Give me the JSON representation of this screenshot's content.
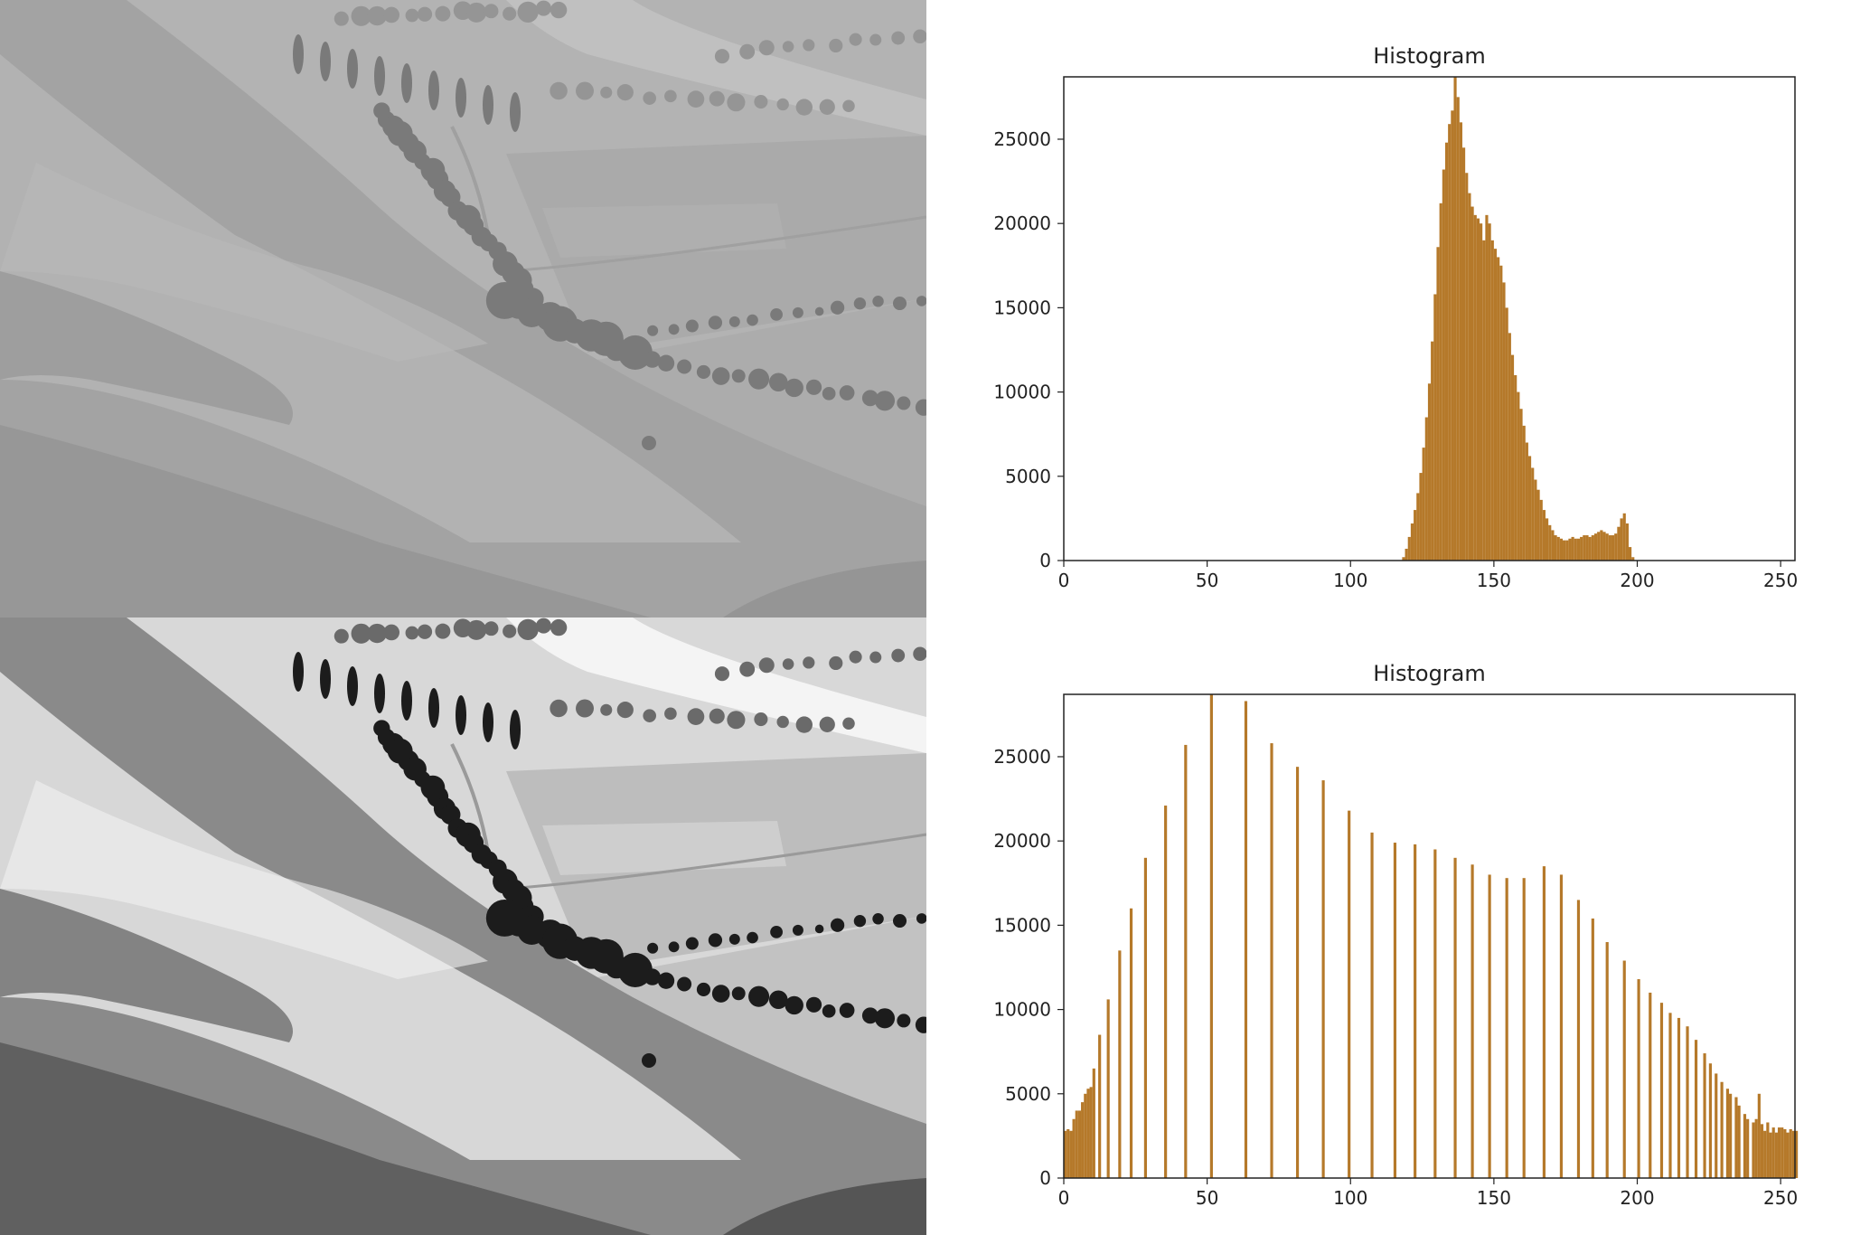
{
  "images": [
    {
      "name": "low-contrast-grayscale-landscape",
      "tone": "low-contrast"
    },
    {
      "name": "histogram-equalized-grayscale-landscape",
      "tone": "high-contrast"
    }
  ],
  "colors": {
    "bar": "#b5792a",
    "axis": "#222222",
    "background": "#ffffff"
  },
  "chart_data": [
    {
      "type": "bar",
      "title": "Histogram",
      "xlabel": "",
      "ylabel": "",
      "xlim": [
        0,
        255
      ],
      "ylim": [
        0,
        28700
      ],
      "xticks": [
        0,
        50,
        100,
        150,
        200,
        250
      ],
      "yticks": [
        0,
        5000,
        10000,
        15000,
        20000,
        25000
      ],
      "grid": false,
      "bar_width": 1,
      "x": [
        118,
        119,
        120,
        121,
        122,
        123,
        124,
        125,
        126,
        127,
        128,
        129,
        130,
        131,
        132,
        133,
        134,
        135,
        136,
        137,
        138,
        139,
        140,
        141,
        142,
        143,
        144,
        145,
        146,
        147,
        148,
        149,
        150,
        151,
        152,
        153,
        154,
        155,
        156,
        157,
        158,
        159,
        160,
        161,
        162,
        163,
        164,
        165,
        166,
        167,
        168,
        169,
        170,
        171,
        172,
        173,
        174,
        175,
        176,
        177,
        178,
        179,
        180,
        181,
        182,
        183,
        184,
        185,
        186,
        187,
        188,
        189,
        190,
        191,
        192,
        193,
        194,
        195,
        196,
        197,
        198,
        199,
        200
      ],
      "values": [
        200,
        700,
        1400,
        2200,
        3000,
        4000,
        5200,
        6700,
        8500,
        10500,
        13000,
        15800,
        18600,
        21200,
        23200,
        24800,
        25900,
        26700,
        28700,
        27500,
        26000,
        24500,
        23000,
        21800,
        21000,
        20500,
        20300,
        20000,
        19000,
        20500,
        20000,
        19000,
        18500,
        18000,
        17500,
        16500,
        15000,
        13500,
        12200,
        11000,
        10000,
        9000,
        8000,
        7000,
        6200,
        5500,
        4800,
        4200,
        3600,
        3000,
        2500,
        2100,
        1800,
        1500,
        1400,
        1300,
        1200,
        1200,
        1300,
        1400,
        1300,
        1300,
        1400,
        1500,
        1500,
        1400,
        1500,
        1600,
        1700,
        1800,
        1700,
        1600,
        1500,
        1500,
        1600,
        2000,
        2500,
        2800,
        2200,
        800,
        200,
        0,
        0
      ]
    },
    {
      "type": "bar",
      "title": "Histogram",
      "xlabel": "",
      "ylabel": "",
      "xlim": [
        0,
        255
      ],
      "ylim": [
        0,
        28700
      ],
      "xticks": [
        0,
        50,
        100,
        150,
        200,
        250
      ],
      "yticks": [
        0,
        5000,
        10000,
        15000,
        20000,
        25000
      ],
      "grid": false,
      "bar_width": 1,
      "x": [
        0,
        1,
        2,
        3,
        4,
        5,
        6,
        7,
        8,
        9,
        10,
        12,
        15,
        19,
        23,
        28,
        35,
        42,
        51,
        63,
        72,
        81,
        90,
        99,
        107,
        115,
        122,
        129,
        136,
        142,
        148,
        154,
        160,
        167,
        173,
        179,
        184,
        189,
        195,
        200,
        204,
        208,
        211,
        214,
        217,
        220,
        223,
        225,
        227,
        229,
        231,
        232,
        234,
        235,
        237,
        238,
        240,
        241,
        242,
        243,
        244,
        245,
        246,
        247,
        248,
        249,
        250,
        251,
        252,
        253,
        254,
        255
      ],
      "values": [
        2800,
        2900,
        2800,
        3500,
        4000,
        4000,
        4500,
        5000,
        5300,
        5400,
        6500,
        8500,
        10600,
        13500,
        16000,
        19000,
        22100,
        25700,
        28700,
        28300,
        25800,
        24400,
        23600,
        21800,
        20500,
        19900,
        19800,
        19500,
        19000,
        18600,
        18000,
        17800,
        17800,
        18500,
        18000,
        16500,
        15400,
        14000,
        12900,
        11800,
        11000,
        10400,
        9800,
        9500,
        9000,
        8200,
        7400,
        6800,
        6200,
        5700,
        5300,
        5000,
        4800,
        4300,
        3800,
        3500,
        3300,
        3500,
        5000,
        3200,
        2800,
        3300,
        2700,
        3000,
        2700,
        3000,
        3000,
        2900,
        2700,
        2900,
        2800,
        2800
      ]
    }
  ]
}
